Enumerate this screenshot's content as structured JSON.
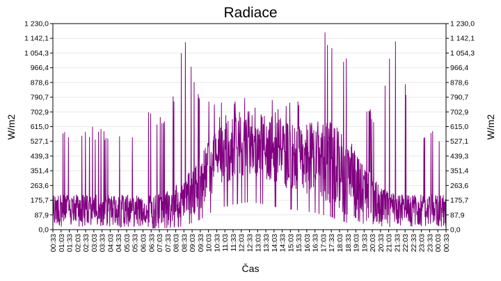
{
  "chart_data": {
    "type": "line",
    "title": "Radiace",
    "xlabel": "Čas",
    "ylabel": "W/m2",
    "ylim": [
      0,
      1230
    ],
    "grid": true,
    "y_ticks": [
      "0,0",
      "87,9",
      "175,7",
      "263,6",
      "351,4",
      "439,3",
      "527,1",
      "615,0",
      "702,9",
      "790,7",
      "878,6",
      "966,4",
      "1 054,3",
      "1 142,1",
      "1 230,0"
    ],
    "y_tick_values": [
      0,
      87.9,
      175.7,
      263.6,
      351.4,
      439.3,
      527.1,
      615.0,
      702.9,
      790.7,
      878.6,
      966.4,
      1054.3,
      1142.1,
      1230.0
    ],
    "x_ticks": [
      "00:33",
      "01:03",
      "01:33",
      "02:03",
      "02:33",
      "03:03",
      "03:33",
      "04:03",
      "04:33",
      "05:03",
      "05:33",
      "06:03",
      "06:33",
      "07:03",
      "07:33",
      "08:03",
      "08:33",
      "09:03",
      "09:33",
      "10:03",
      "10:33",
      "11:03",
      "11:33",
      "12:03",
      "12:33",
      "13:03",
      "13:33",
      "14:03",
      "14:33",
      "15:03",
      "15:33",
      "16:03",
      "16:33",
      "17:03",
      "17:33",
      "18:03",
      "18:33",
      "19:03",
      "19:33",
      "20:03",
      "20:33",
      "21:03",
      "21:33",
      "22:03",
      "22:33",
      "23:03",
      "23:33",
      "00:03",
      "00:33"
    ],
    "series": [
      {
        "color": "#800080",
        "description": "noisy radiation signal",
        "envelope": {
          "hours_from_start": [
            0,
            1,
            2,
            3,
            4,
            5,
            6,
            7,
            8,
            9,
            10,
            11,
            12,
            13,
            14,
            15,
            16,
            17,
            18,
            19,
            20,
            21,
            22,
            23,
            24
          ],
          "baseline": [
            20,
            15,
            15,
            15,
            15,
            15,
            15,
            20,
            40,
            120,
            250,
            300,
            330,
            300,
            250,
            230,
            200,
            150,
            80,
            30,
            15,
            15,
            15,
            15,
            15
          ],
          "upper": [
            210,
            210,
            210,
            210,
            210,
            210,
            210,
            230,
            300,
            450,
            600,
            700,
            720,
            700,
            650,
            620,
            650,
            650,
            550,
            400,
            250,
            210,
            210,
            210,
            210
          ],
          "spike_max": [
            615,
            615,
            615,
            615,
            615,
            615,
            790,
            640,
            1230,
            780,
            790,
            780,
            790,
            780,
            770,
            770,
            1230,
            1230,
            1050,
            700,
            790,
            1230,
            615,
            615,
            615
          ]
        }
      }
    ]
  }
}
